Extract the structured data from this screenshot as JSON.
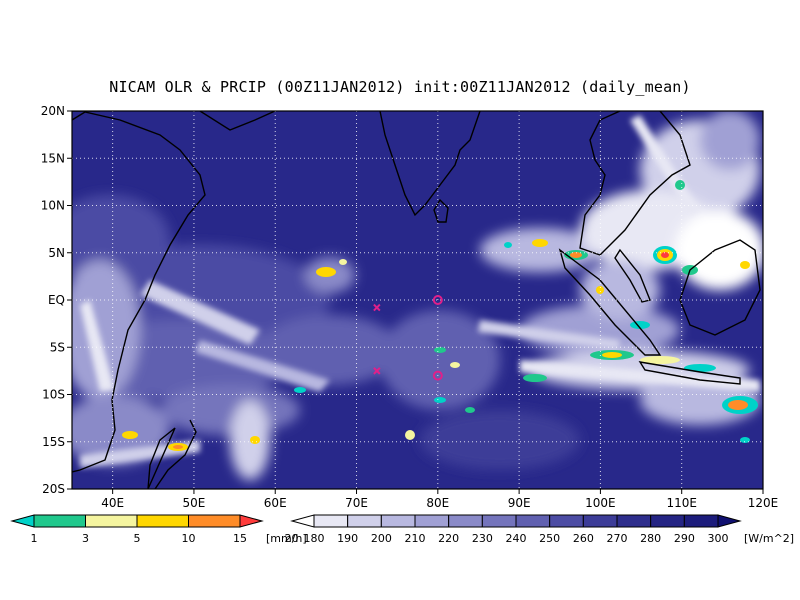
{
  "title": "NICAM OLR & PRCIP (00Z11JAN2012) init:00Z11JAN2012 (daily_mean)",
  "map": {
    "lon_range": [
      35,
      120
    ],
    "lat_range": [
      -20,
      20
    ],
    "lon_ticks": [
      "40E",
      "50E",
      "60E",
      "70E",
      "80E",
      "90E",
      "100E",
      "110E",
      "120E"
    ],
    "lat_ticks": [
      "20N",
      "15N",
      "10N",
      "5N",
      "EQ",
      "5S",
      "10S",
      "15S",
      "20S"
    ],
    "grid": "dotted",
    "background_color": "#28288a",
    "markers": [
      {
        "symbol": "x",
        "lon": 72.5,
        "lat": -0.8,
        "color": "#e0208a"
      },
      {
        "symbol": "o",
        "lon": 80,
        "lat": 0,
        "color": "#e0208a"
      },
      {
        "symbol": "x",
        "lon": 72.5,
        "lat": -7.5,
        "color": "#e0208a"
      },
      {
        "symbol": "o",
        "lon": 80,
        "lat": -8,
        "color": "#e0208a"
      }
    ]
  },
  "precip_colorbar": {
    "labels": [
      "1",
      "3",
      "5",
      "10",
      "15",
      "20"
    ],
    "unit": "[mm/h]",
    "colors": [
      "#00d2c8",
      "#20c88c",
      "#f5f5a0",
      "#ffd700",
      "#ff8c28",
      "#ff3c3c"
    ]
  },
  "olr_colorbar": {
    "labels": [
      "180",
      "190",
      "200",
      "210",
      "220",
      "230",
      "240",
      "250",
      "260",
      "270",
      "280",
      "290",
      "300"
    ],
    "unit": "[W/m^2]",
    "colors": [
      "#ffffff",
      "#e8e8f4",
      "#d0d0ea",
      "#b8b8e0",
      "#a0a0d4",
      "#8a8ac8",
      "#7474bc",
      "#6060b0",
      "#4c4ca4",
      "#3c3c98",
      "#2e2e8c",
      "#242484",
      "#1c1c7c",
      "#101070"
    ]
  }
}
